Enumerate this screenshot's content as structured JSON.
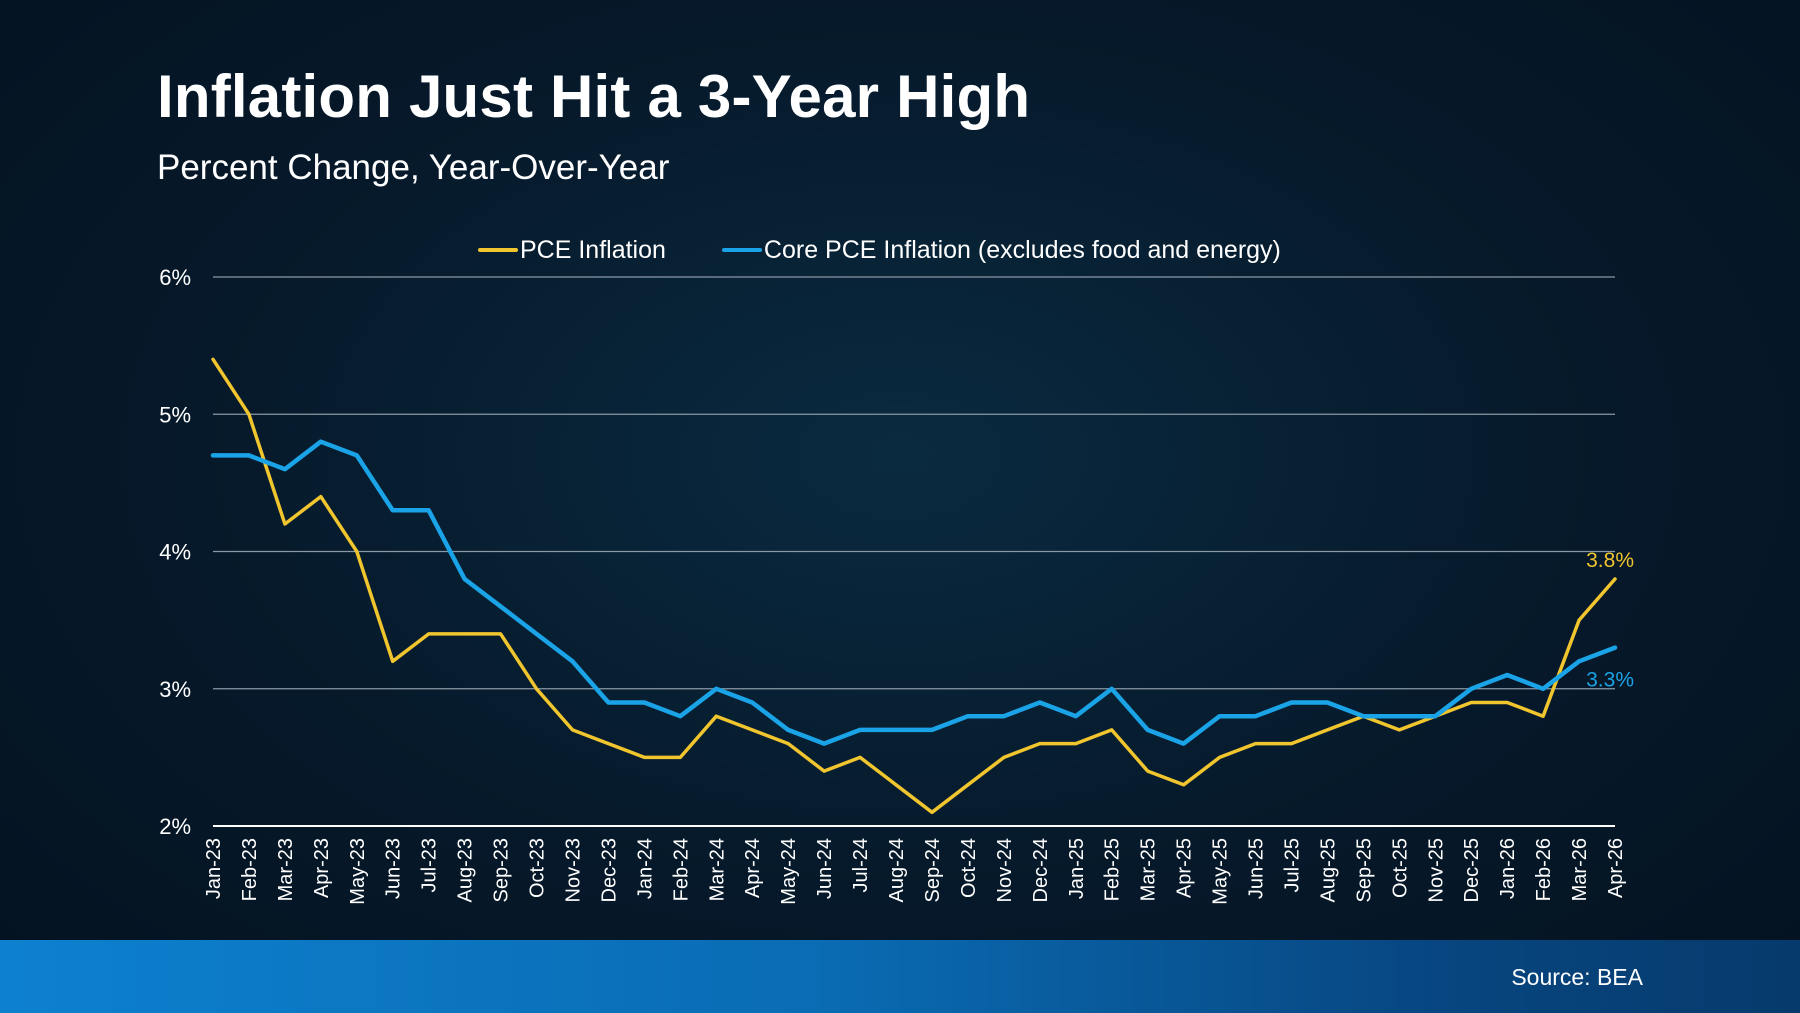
{
  "header": {
    "title": "Inflation Just Hit a 3-Year High",
    "subtitle": "Percent Change, Year-Over-Year"
  },
  "footer": {
    "source": "Source: BEA"
  },
  "colors": {
    "pce": "#f0c52e",
    "core_pce": "#1aa3e6",
    "grid": "#8a99a6",
    "axis": "#ffffff"
  },
  "chart_data": {
    "type": "line",
    "title": "Inflation Just Hit a 3-Year High",
    "subtitle": "Percent Change, Year-Over-Year",
    "x": [
      "Jan-23",
      "Feb-23",
      "Mar-23",
      "Apr-23",
      "May-23",
      "Jun-23",
      "Jul-23",
      "Aug-23",
      "Sep-23",
      "Oct-23",
      "Nov-23",
      "Dec-23",
      "Jan-24",
      "Feb-24",
      "Mar-24",
      "Apr-24",
      "May-24",
      "Jun-24",
      "Jul-24",
      "Aug-24",
      "Sep-24",
      "Oct-24",
      "Nov-24",
      "Dec-24",
      "Jan-25",
      "Feb-25",
      "Mar-25",
      "Apr-25",
      "May-25",
      "Jun-25",
      "Jul-25",
      "Aug-25",
      "Sep-25",
      "Oct-25",
      "Nov-25",
      "Dec-25",
      "Jan-26",
      "Feb-26",
      "Mar-26",
      "Apr-26"
    ],
    "yticks": [
      "2%",
      "3%",
      "4%",
      "5%",
      "6%"
    ],
    "ylim": [
      2,
      6
    ],
    "grid": true,
    "legend_position": "top-center",
    "series": [
      {
        "name": "PCE Inflation",
        "color": "#f0c52e",
        "values": [
          5.4,
          5.0,
          4.2,
          4.4,
          4.0,
          3.2,
          3.4,
          3.4,
          3.4,
          3.0,
          2.7,
          2.6,
          2.5,
          2.5,
          2.8,
          2.7,
          2.6,
          2.4,
          2.5,
          2.3,
          2.1,
          2.3,
          2.5,
          2.6,
          2.6,
          2.7,
          2.4,
          2.3,
          2.5,
          2.6,
          2.6,
          2.7,
          2.8,
          2.7,
          2.8,
          2.9,
          2.9,
          2.8,
          3.5,
          3.8
        ],
        "end_label": "3.8%"
      },
      {
        "name": "Core PCE Inflation (excludes food and energy)",
        "color": "#1aa3e6",
        "values": [
          4.7,
          4.7,
          4.6,
          4.8,
          4.7,
          4.3,
          4.3,
          3.8,
          3.6,
          3.4,
          3.2,
          2.9,
          2.9,
          2.8,
          3.0,
          2.9,
          2.7,
          2.6,
          2.7,
          2.7,
          2.7,
          2.8,
          2.8,
          2.9,
          2.8,
          3.0,
          2.7,
          2.6,
          2.8,
          2.8,
          2.9,
          2.9,
          2.8,
          2.8,
          2.8,
          3.0,
          3.1,
          3.0,
          3.2,
          3.3
        ],
        "end_label": "3.3%"
      }
    ]
  }
}
